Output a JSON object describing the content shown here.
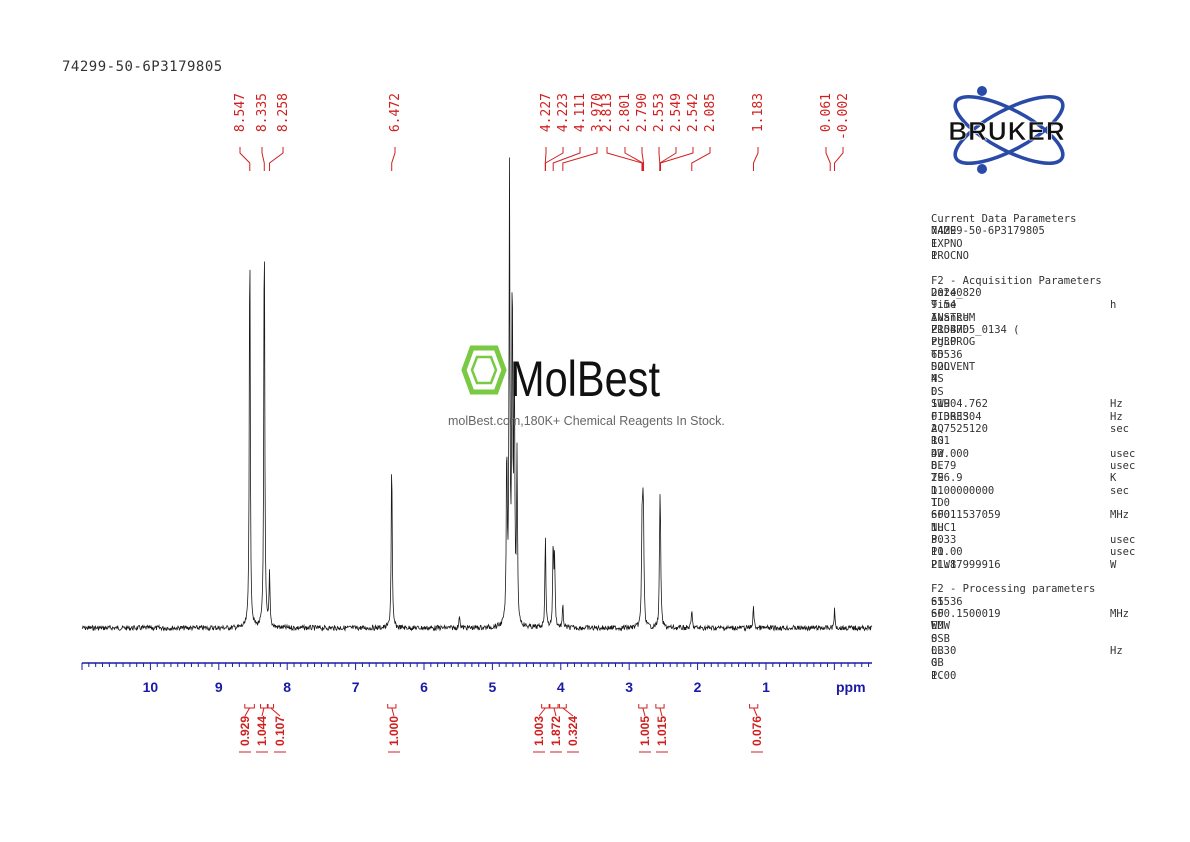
{
  "sample_id": "74299-50-6P3179805",
  "brand": {
    "bruker_text": "BRUKER",
    "watermark_text": "MolBest",
    "watermark_tagline": "molBest.com,180K+ Chemical Reagents In Stock.",
    "watermark_color": "#7ac943"
  },
  "chart_data": {
    "type": "line",
    "title": "",
    "xlabel": "ppm",
    "ylabel": "",
    "xlim": [
      11.0,
      -0.55
    ],
    "x_reversed": true,
    "grid": false,
    "ticks": [
      "10",
      "9",
      "8",
      "7",
      "6",
      "5",
      "4",
      "3",
      "2",
      "1",
      "ppm"
    ],
    "tick_values": [
      10,
      9,
      8,
      7,
      6,
      5,
      4,
      3,
      2,
      1
    ],
    "axis_color": "#1a1aa8",
    "peak_color": "#d11f1f",
    "peak_labels": [
      {
        "ppm": 8.547,
        "text": "8.547"
      },
      {
        "ppm": 8.335,
        "text": "8.335"
      },
      {
        "ppm": 8.258,
        "text": "8.258"
      },
      {
        "ppm": 6.472,
        "text": "6.472"
      },
      {
        "ppm": 4.227,
        "text": "4.227"
      },
      {
        "ppm": 4.223,
        "text": "4.223"
      },
      {
        "ppm": 4.111,
        "text": "4.111"
      },
      {
        "ppm": 3.97,
        "text": "3.970"
      },
      {
        "ppm": 2.813,
        "text": "2.813"
      },
      {
        "ppm": 2.801,
        "text": "2.801"
      },
      {
        "ppm": 2.79,
        "text": "2.790"
      },
      {
        "ppm": 2.553,
        "text": "2.553"
      },
      {
        "ppm": 2.549,
        "text": "2.549"
      },
      {
        "ppm": 2.542,
        "text": "2.542"
      },
      {
        "ppm": 2.085,
        "text": "2.085"
      },
      {
        "ppm": 1.183,
        "text": "1.183"
      },
      {
        "ppm": 0.061,
        "text": "0.061"
      },
      {
        "ppm": -0.002,
        "text": "-0.002"
      }
    ],
    "integrals": [
      {
        "center": 8.55,
        "from": 8.62,
        "to": 8.48,
        "text": "0.929"
      },
      {
        "center": 8.33,
        "from": 8.39,
        "to": 8.29,
        "text": "1.044"
      },
      {
        "center": 8.26,
        "from": 8.28,
        "to": 8.2,
        "text": "0.107"
      },
      {
        "center": 6.47,
        "from": 6.53,
        "to": 6.41,
        "text": "1.000"
      },
      {
        "center": 4.23,
        "from": 4.28,
        "to": 4.17,
        "text": "1.003"
      },
      {
        "center": 4.11,
        "from": 4.16,
        "to": 4.04,
        "text": "1.872"
      },
      {
        "center": 3.97,
        "from": 4.02,
        "to": 3.92,
        "text": "0.324"
      },
      {
        "center": 2.8,
        "from": 2.86,
        "to": 2.74,
        "text": "1.005"
      },
      {
        "center": 2.55,
        "from": 2.61,
        "to": 2.49,
        "text": "1.015"
      },
      {
        "center": 1.18,
        "from": 1.24,
        "to": 1.12,
        "text": "0.076"
      }
    ],
    "peaks": [
      {
        "ppm": 8.547,
        "height": 0.92
      },
      {
        "ppm": 8.335,
        "height": 0.95
      },
      {
        "ppm": 8.258,
        "height": 0.12
      },
      {
        "ppm": 6.472,
        "height": 0.39
      },
      {
        "ppm": 5.48,
        "height": 0.03
      },
      {
        "ppm": 4.79,
        "height": 0.39
      },
      {
        "ppm": 4.75,
        "height": 1.0
      },
      {
        "ppm": 4.71,
        "height": 0.78
      },
      {
        "ppm": 4.68,
        "height": 0.58
      },
      {
        "ppm": 4.64,
        "height": 0.37
      },
      {
        "ppm": 4.225,
        "height": 0.21
      },
      {
        "ppm": 4.111,
        "height": 0.19
      },
      {
        "ppm": 4.09,
        "height": 0.15
      },
      {
        "ppm": 3.97,
        "height": 0.05
      },
      {
        "ppm": 2.813,
        "height": 0.19
      },
      {
        "ppm": 2.801,
        "height": 0.2
      },
      {
        "ppm": 2.79,
        "height": 0.18
      },
      {
        "ppm": 2.553,
        "height": 0.12
      },
      {
        "ppm": 2.549,
        "height": 0.13
      },
      {
        "ppm": 2.542,
        "height": 0.12
      },
      {
        "ppm": 2.085,
        "height": 0.04
      },
      {
        "ppm": 1.183,
        "height": 0.05
      },
      {
        "ppm": -0.002,
        "height": 0.04
      }
    ]
  },
  "params": {
    "sec1": {
      "title": "Current Data Parameters",
      "rows": [
        {
          "name": "NAME",
          "value": "74299-50-6P3179805",
          "unit": ""
        },
        {
          "name": "EXPNO",
          "value": "1",
          "unit": ""
        },
        {
          "name": "PROCNO",
          "value": "1",
          "unit": ""
        }
      ]
    },
    "sec2": {
      "title": "F2 - Acquisition Parameters",
      "rows": [
        {
          "name": "Date_",
          "value": "20240820",
          "unit": ""
        },
        {
          "name": "Time",
          "value": "9.54",
          "unit": "h"
        },
        {
          "name": "INSTRUM",
          "value": "Avance",
          "unit": ""
        },
        {
          "name": "PROBHD",
          "value": "Z154705_0134 (",
          "unit": ""
        },
        {
          "name": "PULPROG",
          "value": "zg30",
          "unit": ""
        },
        {
          "name": "TD",
          "value": "65536",
          "unit": ""
        },
        {
          "name": "SOLVENT",
          "value": "D2O",
          "unit": ""
        },
        {
          "name": "NS",
          "value": "4",
          "unit": ""
        },
        {
          "name": "DS",
          "value": "0",
          "unit": ""
        },
        {
          "name": "SWH",
          "value": "11904.762",
          "unit": "Hz"
        },
        {
          "name": "FIDRES",
          "value": "0.363304",
          "unit": "Hz"
        },
        {
          "name": "AQ",
          "value": "2.7525120",
          "unit": "sec"
        },
        {
          "name": "RG",
          "value": "101",
          "unit": ""
        },
        {
          "name": "DW",
          "value": "42.000",
          "unit": "usec"
        },
        {
          "name": "DE",
          "value": "8.79",
          "unit": "usec"
        },
        {
          "name": "TE",
          "value": "296.9",
          "unit": "K"
        },
        {
          "name": "D1",
          "value": "1.00000000",
          "unit": "sec"
        },
        {
          "name": "TD0",
          "value": "1",
          "unit": ""
        },
        {
          "name": "SFO1",
          "value": "600.1537059",
          "unit": "MHz"
        },
        {
          "name": "NUC1",
          "value": "1H",
          "unit": ""
        },
        {
          "name": "P0",
          "value": "3.33",
          "unit": "usec"
        },
        {
          "name": "P1",
          "value": "10.00",
          "unit": "usec"
        },
        {
          "name": "PLW1",
          "value": "21.87999916",
          "unit": "W"
        }
      ]
    },
    "sec3": {
      "title": "F2 - Processing parameters",
      "rows": [
        {
          "name": "SI",
          "value": "65536",
          "unit": ""
        },
        {
          "name": "SF",
          "value": "600.1500019",
          "unit": "MHz"
        },
        {
          "name": "WDW",
          "value": "EM",
          "unit": ""
        },
        {
          "name": "SSB",
          "value": "0",
          "unit": ""
        },
        {
          "name": "LB",
          "value": "0.30",
          "unit": "Hz"
        },
        {
          "name": "GB",
          "value": "0",
          "unit": ""
        },
        {
          "name": "PC",
          "value": "1.00",
          "unit": ""
        }
      ]
    }
  }
}
